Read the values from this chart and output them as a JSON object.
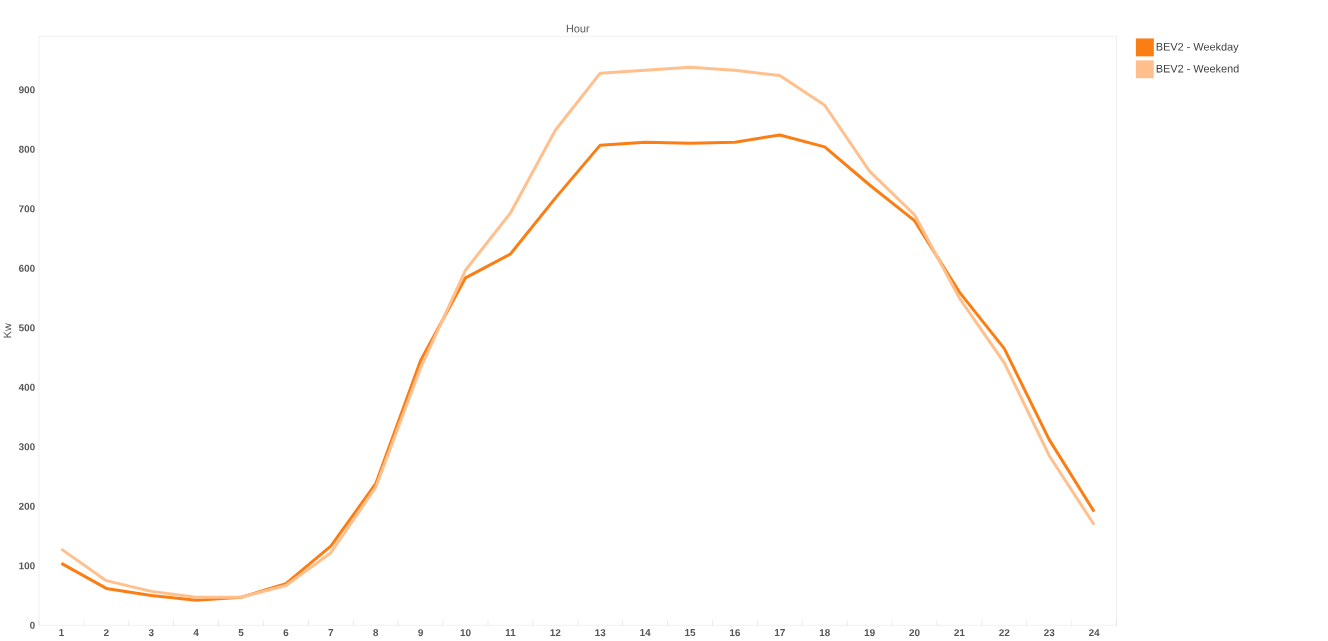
{
  "chart_data": {
    "type": "line",
    "xlabel": "Hour",
    "ylabel": "Kw",
    "categories": [
      "1",
      "2",
      "3",
      "4",
      "5",
      "6",
      "7",
      "8",
      "9",
      "10",
      "11",
      "12",
      "13",
      "14",
      "15",
      "16",
      "17",
      "18",
      "19",
      "20",
      "21",
      "22",
      "23",
      "24"
    ],
    "series": [
      {
        "name": "BEV2 - Weekday",
        "color": "#fb7e14",
        "values": [
          104,
          62,
          50,
          42,
          47,
          70,
          133,
          238,
          445,
          584,
          624,
          718,
          807,
          812,
          810,
          812,
          824,
          804,
          740,
          680,
          560,
          465,
          312,
          191
        ]
      },
      {
        "name": "BEV2 - Weekend",
        "color": "#ffc08e",
        "values": [
          128,
          75,
          57,
          47,
          47,
          67,
          122,
          232,
          433,
          597,
          693,
          832,
          928,
          933,
          938,
          933,
          924,
          874,
          763,
          690,
          550,
          441,
          285,
          169
        ]
      }
    ],
    "ylim": [
      0,
      990
    ],
    "yticks": [
      0,
      100,
      200,
      300,
      400,
      500,
      600,
      700,
      800,
      900
    ],
    "legend": "top right",
    "marker": "none",
    "line_style": "solid"
  }
}
